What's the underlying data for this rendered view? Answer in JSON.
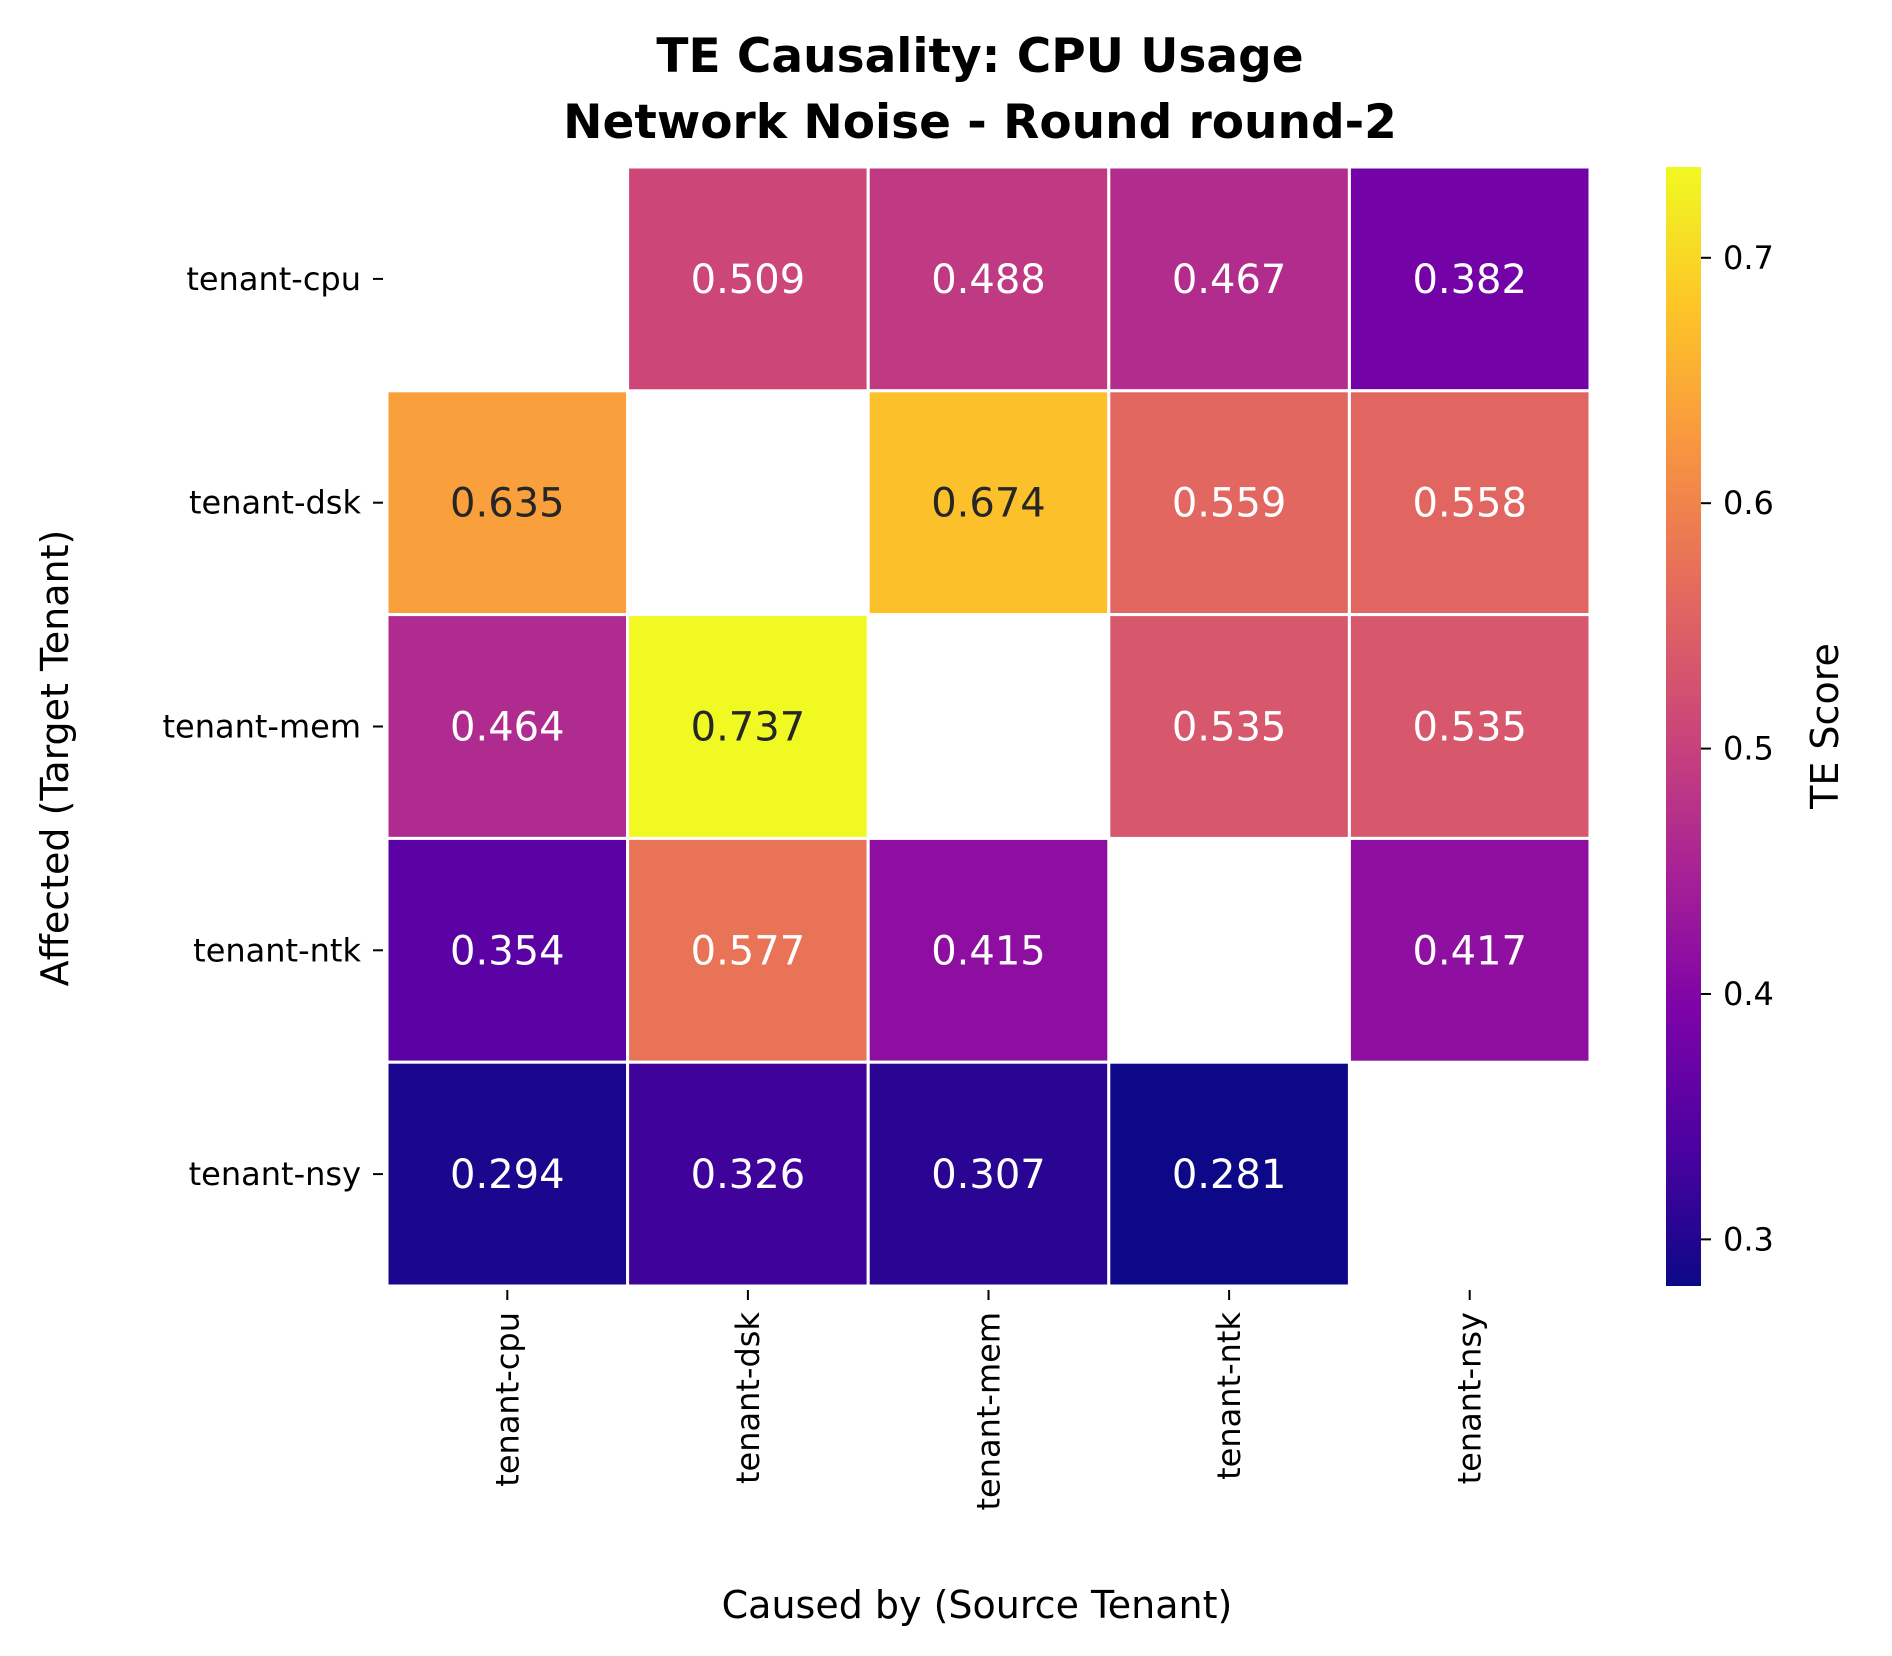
{
  "chart_data": {
    "type": "heatmap",
    "title_lines": [
      "TE Causality: CPU Usage",
      "Network Noise - Round round-2"
    ],
    "xlabel": "Caused by (Source Tenant)",
    "ylabel": "Affected (Target Tenant)",
    "x_categories": [
      "tenant-cpu",
      "tenant-dsk",
      "tenant-mem",
      "tenant-ntk",
      "tenant-nsy"
    ],
    "y_categories": [
      "tenant-cpu",
      "tenant-dsk",
      "tenant-mem",
      "tenant-ntk",
      "tenant-nsy"
    ],
    "values": [
      [
        null,
        0.509,
        0.488,
        0.467,
        0.382
      ],
      [
        0.635,
        null,
        0.674,
        0.559,
        0.558
      ],
      [
        0.464,
        0.737,
        null,
        0.535,
        0.535
      ],
      [
        0.354,
        0.577,
        0.415,
        null,
        0.417
      ],
      [
        0.294,
        0.326,
        0.307,
        0.281,
        null
      ]
    ],
    "colormap": "plasma",
    "vmin": 0.281,
    "vmax": 0.737,
    "colorbar": {
      "label": "TE Score",
      "ticks": [
        0.3,
        0.4,
        0.5,
        0.6,
        0.7
      ],
      "tick_labels": [
        "0.3",
        "0.4",
        "0.5",
        "0.6",
        "0.7"
      ]
    },
    "text_colors": {
      "light": "#ffffff",
      "dark": "#262626"
    }
  }
}
